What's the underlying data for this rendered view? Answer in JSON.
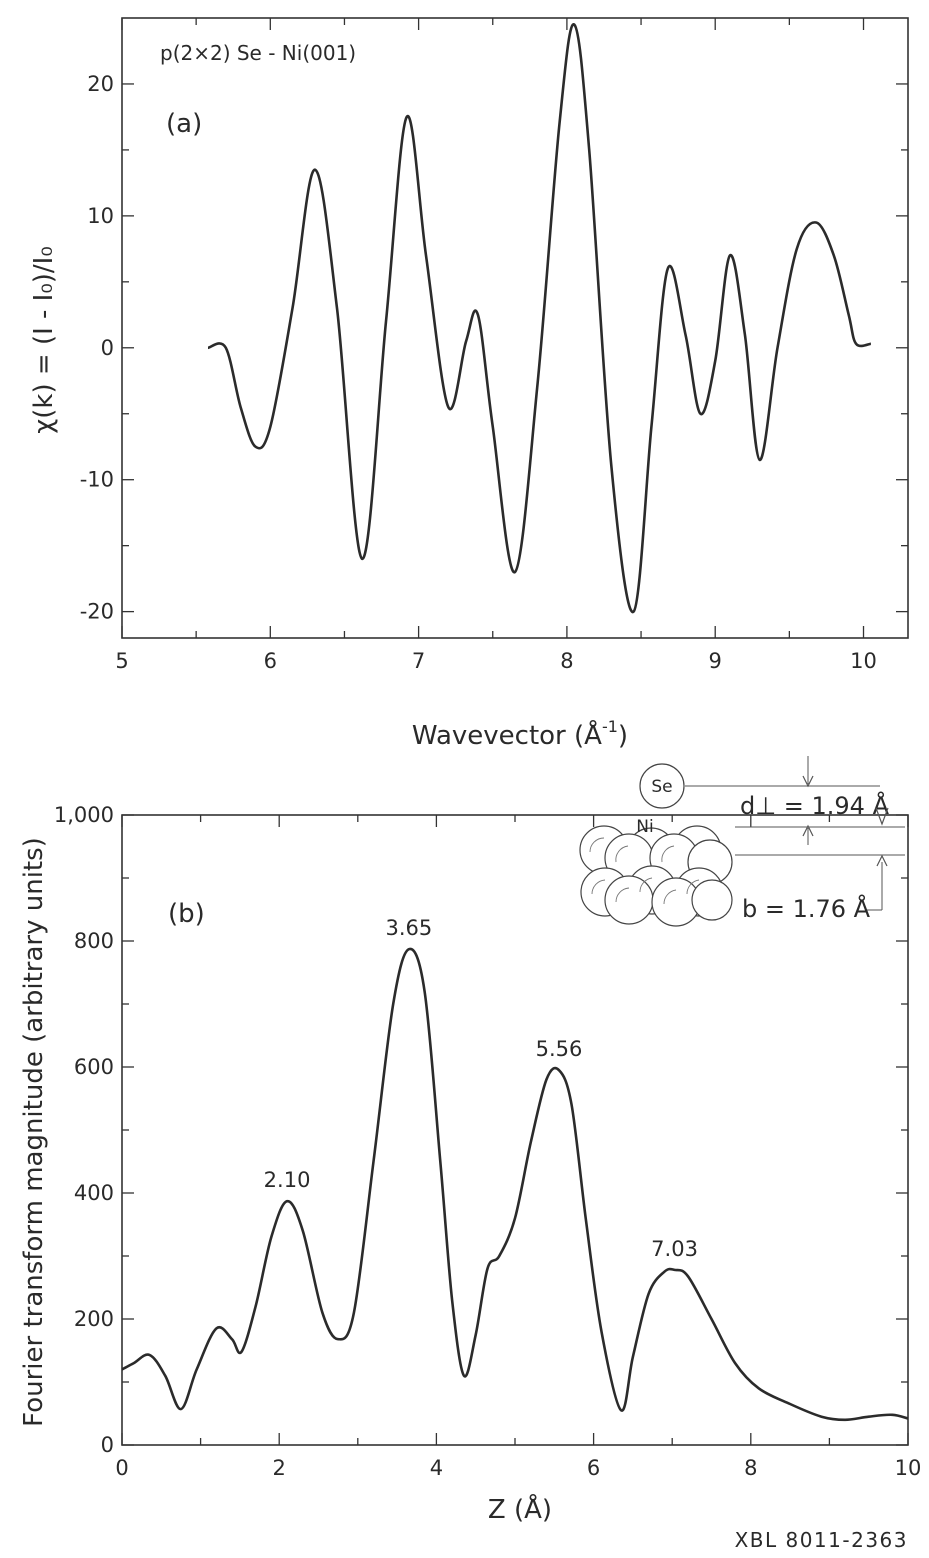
{
  "figure_code": "XBL 8011-2363",
  "chart_data": [
    {
      "type": "line",
      "panel_label": "(a)",
      "annotation": "p(2×2) Se - Ni(001)",
      "xlabel": "Wavevector (Å",
      "xlabel_sup": "-1",
      "xlabel_close": ")",
      "ylabel": "χ(k) = (I - I₀)/I₀",
      "xlim": [
        5,
        10.3
      ],
      "ylim": [
        -22,
        25
      ],
      "x_ticks": [
        "5",
        "6",
        "7",
        "8",
        "9",
        "10"
      ],
      "y_ticks": [
        "-20",
        "-10",
        "0",
        "10",
        "20"
      ],
      "series": [
        {
          "x": [
            5.58,
            5.7,
            5.8,
            5.9,
            6.0,
            6.15,
            6.3,
            6.45,
            6.62,
            6.78,
            6.92,
            7.05,
            7.2,
            7.32,
            7.4,
            7.5,
            7.65,
            7.8,
            7.95,
            8.05,
            8.15,
            8.3,
            8.45,
            8.57,
            8.68,
            8.8,
            8.9,
            9.0,
            9.1,
            9.2,
            9.3,
            9.42,
            9.55,
            9.68,
            9.8,
            9.9,
            9.95,
            10.05
          ],
          "y": [
            0,
            0,
            -4.5,
            -7.5,
            -6.0,
            3.0,
            13.5,
            3.0,
            -16.0,
            2.0,
            17.5,
            7.0,
            -4.5,
            0.5,
            2.5,
            -6.0,
            -17.0,
            -3.0,
            17.0,
            24.5,
            15.0,
            -9.0,
            -20.0,
            -6.0,
            6.0,
            1.0,
            -5.0,
            -1.0,
            7.0,
            1.0,
            -8.5,
            0.0,
            7.5,
            9.5,
            7.0,
            2.5,
            0.3,
            0.3
          ]
        }
      ]
    },
    {
      "type": "line",
      "panel_label": "(b)",
      "xlabel": "Z (Å)",
      "ylabel": "Fourier transform magnitude (arbitrary units)",
      "xlim": [
        0,
        10
      ],
      "ylim": [
        0,
        1000
      ],
      "x_ticks": [
        "0",
        "2",
        "4",
        "6",
        "8",
        "10"
      ],
      "y_ticks": [
        "0",
        "200",
        "400",
        "600",
        "800",
        "1,000"
      ],
      "peak_labels": [
        {
          "x": 2.1,
          "y": 387,
          "text": "2.10"
        },
        {
          "x": 3.65,
          "y": 787,
          "text": "3.65"
        },
        {
          "x": 5.56,
          "y": 595,
          "text": "5.56"
        },
        {
          "x": 7.03,
          "y": 278,
          "text": "7.03"
        }
      ],
      "series": [
        {
          "x": [
            0,
            0.15,
            0.35,
            0.55,
            0.75,
            0.95,
            1.2,
            1.4,
            1.52,
            1.7,
            1.9,
            2.1,
            2.3,
            2.55,
            2.75,
            2.95,
            3.2,
            3.45,
            3.65,
            3.85,
            4.05,
            4.2,
            4.35,
            4.5,
            4.65,
            4.8,
            5.0,
            5.2,
            5.4,
            5.56,
            5.72,
            5.9,
            6.1,
            6.35,
            6.5,
            6.7,
            6.9,
            7.03,
            7.2,
            7.5,
            7.8,
            8.1,
            8.5,
            8.9,
            9.2,
            9.5,
            9.8,
            10.0
          ],
          "y": [
            120,
            130,
            143,
            110,
            57,
            120,
            185,
            168,
            148,
            220,
            330,
            387,
            340,
            210,
            168,
            210,
            450,
            700,
            787,
            720,
            450,
            230,
            110,
            175,
            280,
            300,
            360,
            480,
            580,
            595,
            540,
            360,
            180,
            55,
            140,
            240,
            275,
            278,
            268,
            200,
            130,
            90,
            65,
            45,
            40,
            45,
            48,
            42
          ]
        }
      ]
    }
  ],
  "inset": {
    "se_label": "Se",
    "ni_label": "Ni",
    "d_label": "d⊥ = 1.94 Å",
    "b_label": "b = 1.76 Å"
  }
}
